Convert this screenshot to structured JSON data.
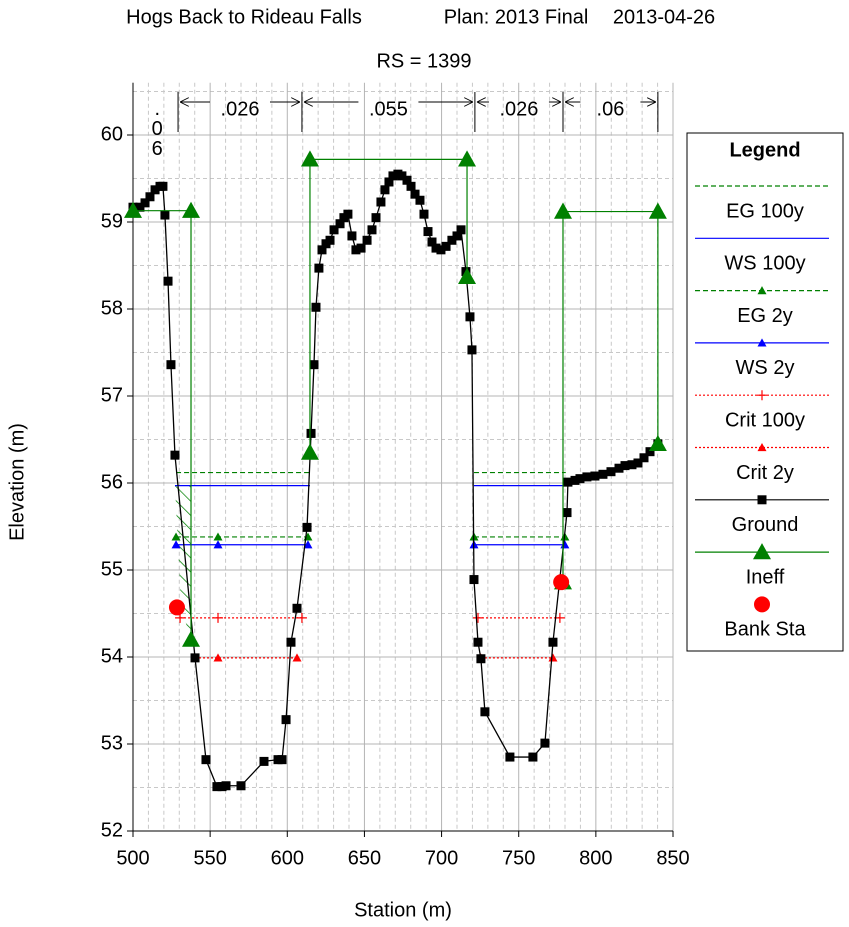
{
  "chart_data": {
    "type": "line",
    "title": "Hogs Back to Rideau Falls",
    "plan": "Plan: 2013 Final",
    "date": "2013-04-26",
    "subtitle": "RS = 1399",
    "xlabel": "Station (m)",
    "ylabel": "Elevation (m)",
    "legend_title": "Legend",
    "legend": "right",
    "grid": true,
    "xlim": [
      500,
      850
    ],
    "xticks": [
      500,
      550,
      600,
      650,
      700,
      750,
      800,
      850
    ],
    "ylim": [
      52,
      60.6
    ],
    "yticks": [
      52,
      53,
      54,
      55,
      56,
      57,
      58,
      59,
      60
    ],
    "mannings_n": {
      "breaks": [
        500,
        529.2,
        609.5,
        721.6,
        778.7,
        840.2
      ],
      "labels": [
        ".06",
        ".026",
        ".055",
        ".026",
        ".06"
      ]
    },
    "series": [
      {
        "name": "EG 100y",
        "color": "#008000",
        "line_style": "dashed",
        "marker": null,
        "x": [
          527.9,
          614.7,
          null,
          721.0,
          780.5
        ],
        "values": [
          56.12,
          56.12,
          null,
          56.12,
          56.12
        ]
      },
      {
        "name": "WS 100y",
        "color": "#0000ff",
        "line_style": "solid",
        "marker": null,
        "x": [
          527.2,
          614.7,
          null,
          721.0,
          781.3
        ],
        "values": [
          55.97,
          55.97,
          null,
          55.97,
          55.97
        ]
      },
      {
        "name": "EG 2y",
        "color": "#008000",
        "line_style": "dashed",
        "marker": "triangle",
        "x": [
          527.9,
          555.1,
          613.4,
          null,
          721.0,
          779.9
        ],
        "values": [
          55.38,
          55.38,
          55.38,
          null,
          55.38,
          55.38
        ]
      },
      {
        "name": "WS 2y",
        "color": "#0000ff",
        "line_style": "solid",
        "marker": "triangle",
        "x": [
          527.9,
          555.1,
          613.4,
          null,
          721.0,
          779.9
        ],
        "values": [
          55.29,
          55.29,
          55.29,
          null,
          55.29,
          55.29
        ]
      },
      {
        "name": "Crit 100y",
        "color": "#ff0000",
        "line_style": "dotted",
        "marker": "plus",
        "x": [
          530.5,
          555.1,
          609.5,
          null,
          723.6,
          776.7
        ],
        "values": [
          54.45,
          54.45,
          54.45,
          null,
          54.45,
          54.45
        ]
      },
      {
        "name": "Crit 2y",
        "color": "#ff0000",
        "line_style": "dotted",
        "marker": "triangle",
        "x": [
          540.2,
          555.1,
          606.3,
          null,
          725.5,
          772.2
        ],
        "values": [
          53.99,
          53.99,
          53.99,
          null,
          53.99,
          53.99
        ]
      },
      {
        "name": "Ground",
        "color": "#000000",
        "line_style": "solid",
        "marker": "square",
        "x": [
          500.0,
          504.5,
          507.8,
          511.0,
          514.3,
          517.5,
          519.4,
          520.7,
          522.7,
          524.6,
          527.2,
          540.2,
          547.3,
          554.4,
          557.7,
          560.3,
          570.0,
          584.9,
          594.0,
          596.6,
          599.2,
          602.4,
          606.3,
          612.8,
          615.4,
          617.3,
          618.6,
          620.5,
          622.5,
          625.1,
          627.7,
          630.3,
          634.2,
          636.7,
          639.3,
          641.9,
          644.5,
          647.8,
          651.7,
          654.9,
          657.5,
          660.7,
          663.3,
          665.9,
          668.5,
          671.7,
          674.3,
          677.6,
          680.2,
          682.8,
          686.0,
          688.6,
          691.2,
          693.8,
          696.4,
          699.6,
          702.9,
          706.7,
          710.0,
          712.6,
          715.8,
          718.4,
          719.7,
          721.0,
          723.6,
          725.5,
          728.1,
          744.3,
          759.2,
          767.0,
          772.2,
          781.3,
          781.9,
          786.5,
          789.7,
          794.2,
          799.4,
          804.6,
          809.8,
          815.0,
          818.9,
          823.4,
          827.3,
          831.2,
          835.1,
          840.2
        ],
        "values": [
          59.17,
          59.17,
          59.22,
          59.29,
          59.37,
          59.41,
          59.41,
          59.08,
          58.32,
          57.36,
          56.32,
          53.99,
          52.82,
          52.51,
          52.51,
          52.52,
          52.52,
          52.8,
          52.82,
          52.82,
          53.28,
          54.17,
          54.56,
          55.49,
          56.57,
          57.36,
          58.02,
          58.47,
          58.68,
          58.75,
          58.79,
          58.91,
          58.98,
          59.05,
          59.09,
          58.84,
          58.68,
          58.7,
          58.79,
          58.91,
          59.05,
          59.23,
          59.37,
          59.46,
          59.53,
          59.55,
          59.53,
          59.48,
          59.41,
          59.32,
          59.25,
          59.09,
          58.89,
          58.77,
          58.7,
          58.68,
          58.72,
          58.79,
          58.84,
          58.91,
          58.43,
          57.91,
          57.53,
          54.89,
          54.17,
          53.98,
          53.37,
          52.85,
          52.85,
          53.01,
          54.17,
          55.66,
          56.01,
          56.03,
          56.05,
          56.07,
          56.08,
          56.1,
          56.13,
          56.17,
          56.2,
          56.21,
          56.23,
          56.29,
          56.36,
          56.45
        ]
      },
      {
        "name": "Ineff",
        "color": "#008000",
        "line_style": "solid",
        "marker": "big-triangle",
        "x": [
          500.0,
          537.6,
          537.6,
          null,
          614.7,
          614.7,
          716.5,
          716.5,
          null,
          778.7,
          778.7,
          840.2,
          840.2
        ],
        "values": [
          59.13,
          59.13,
          54.2,
          null,
          56.35,
          59.72,
          59.72,
          58.37,
          null,
          54.86,
          59.12,
          59.12,
          56.45
        ]
      },
      {
        "name": "Bank Sta",
        "color": "#ff0000",
        "line_style": "none",
        "marker": "circle",
        "x": [
          528.5,
          777.5
        ],
        "values": [
          54.57,
          54.86
        ]
      }
    ]
  }
}
